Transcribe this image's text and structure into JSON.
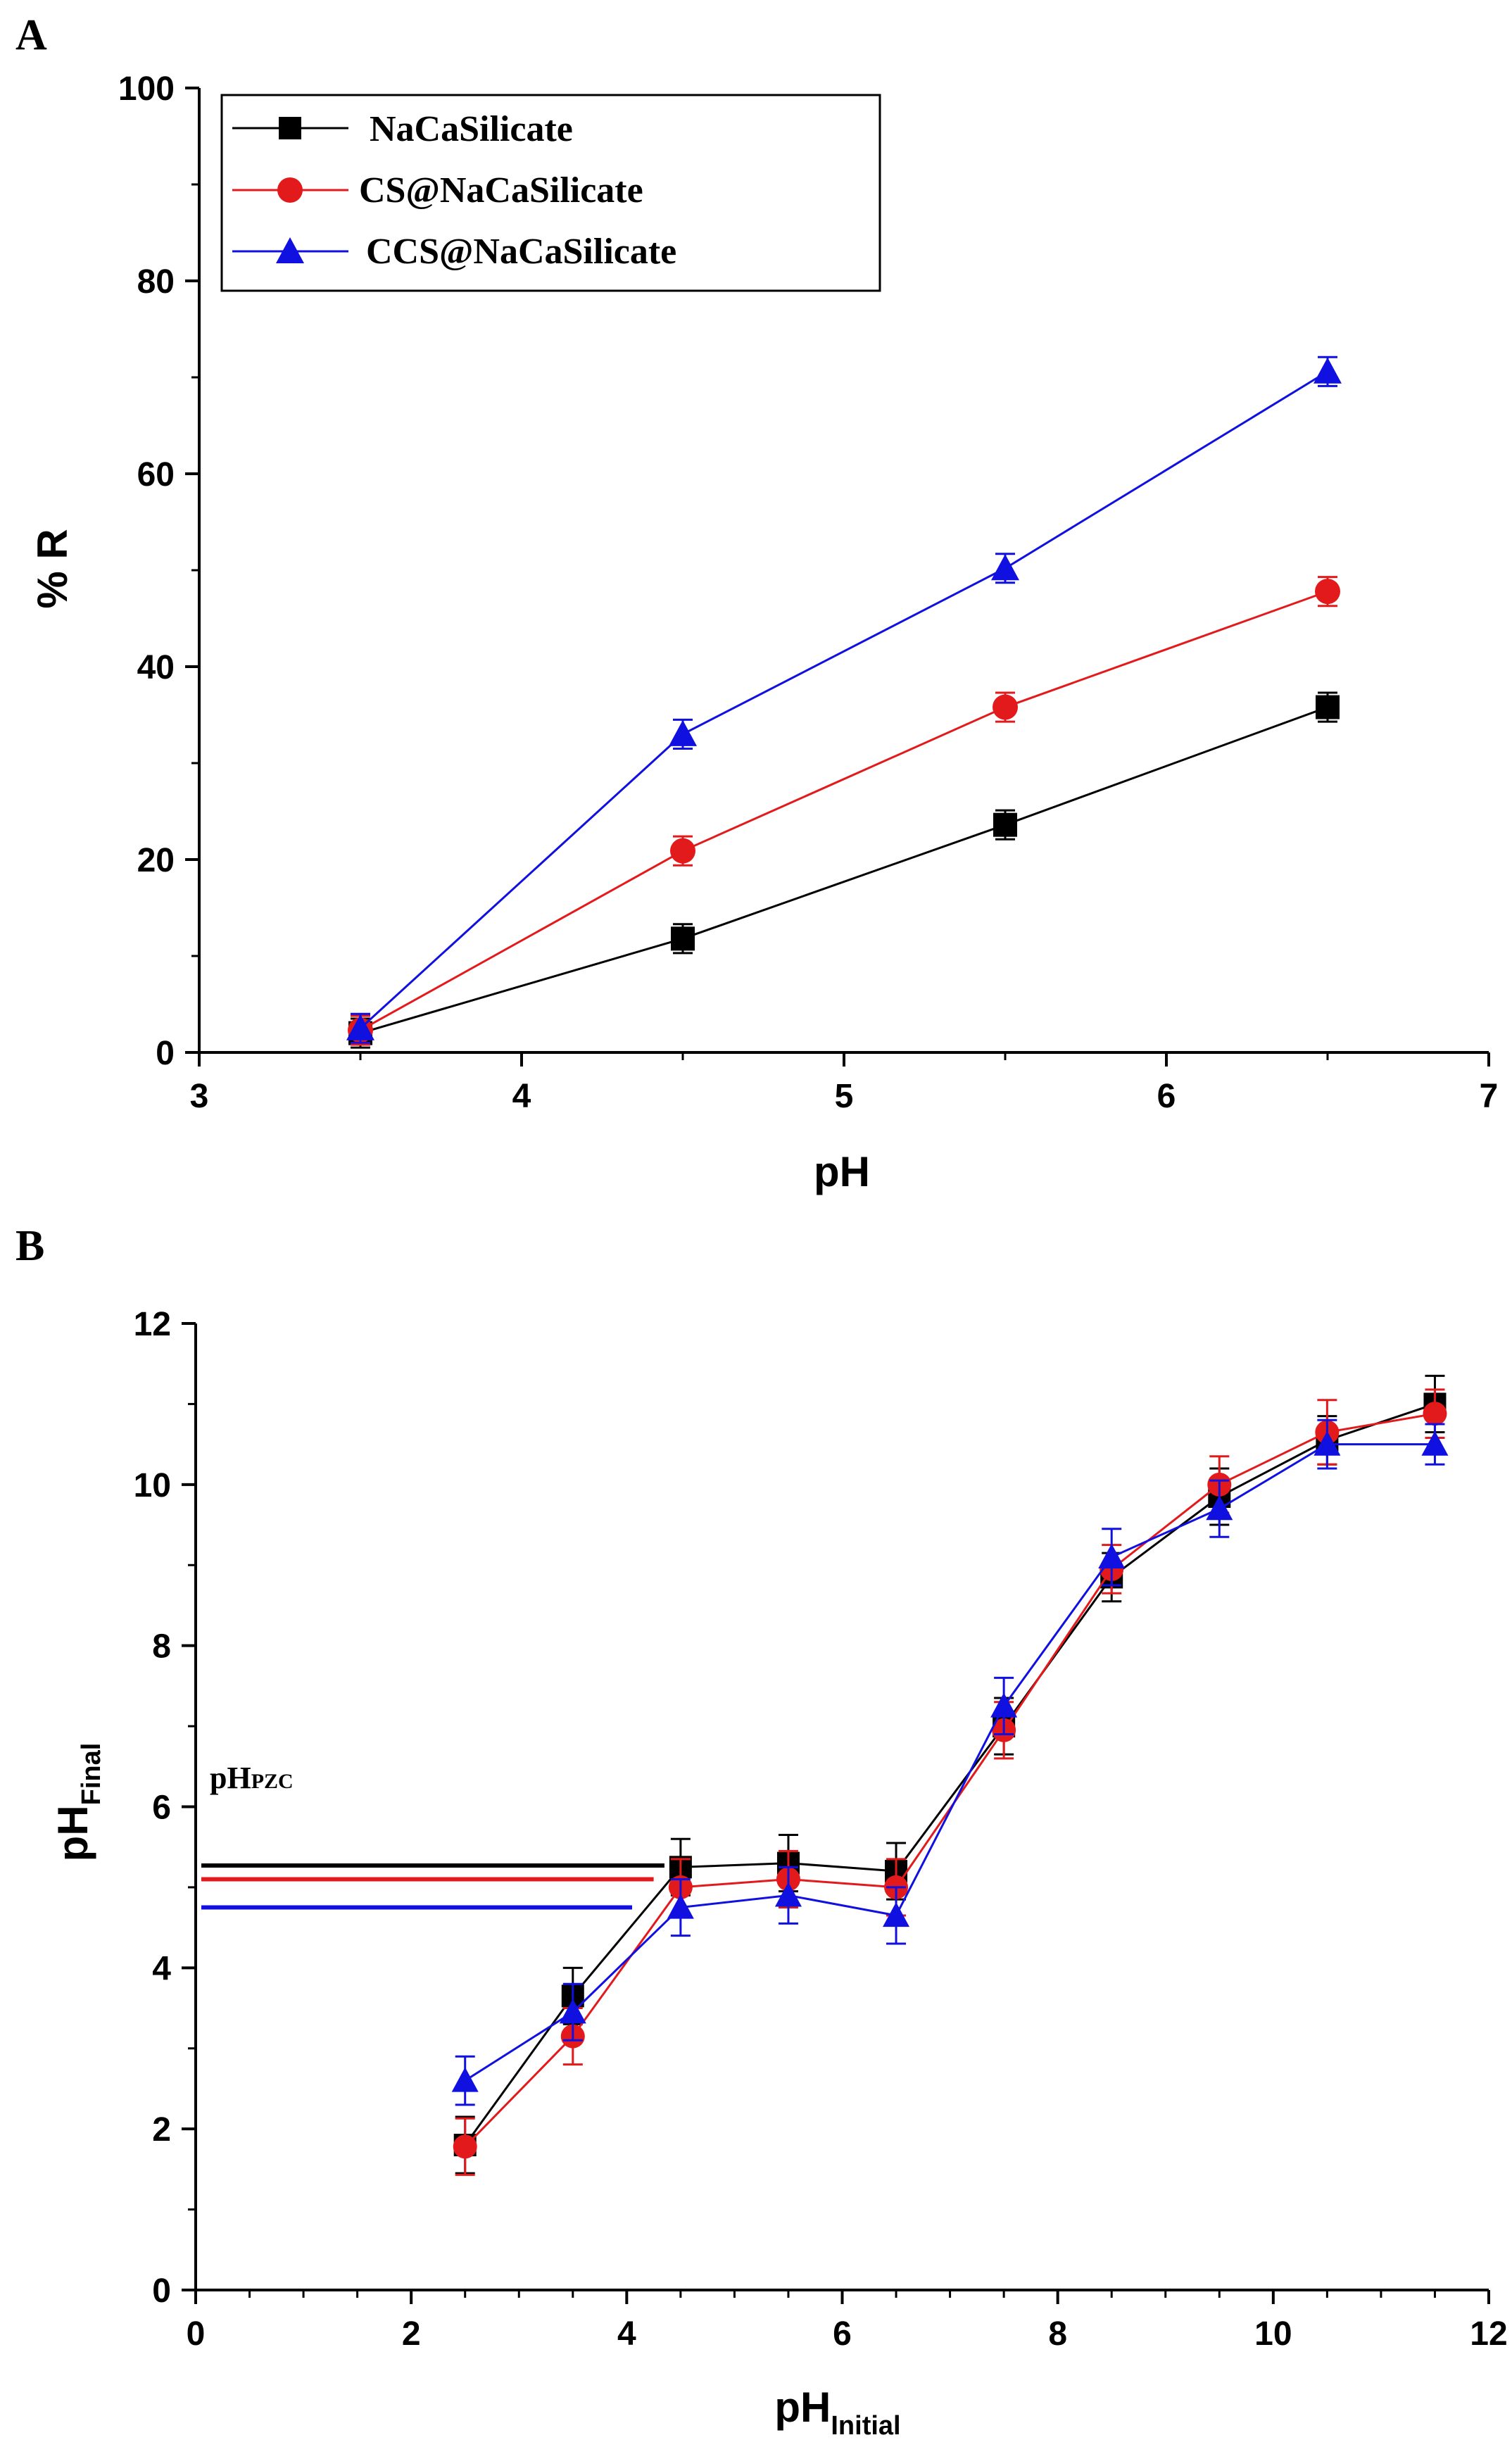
{
  "figure": {
    "panels": [
      "A",
      "B"
    ]
  },
  "colors": {
    "NaCaSilicate": "#000000",
    "CS@NaCaSilicate": "#e31a1c",
    "CCS@NaCaSilicate": "#1010e0",
    "axis": "#000000"
  },
  "chart_data": [
    {
      "panel": "A",
      "type": "line",
      "title": "",
      "xlabel": "pH",
      "ylabel": "% R",
      "xlim": [
        3,
        7
      ],
      "ylim": [
        0,
        100
      ],
      "xticks": [
        "3",
        "4",
        "5",
        "6",
        "7"
      ],
      "yticks": [
        "0",
        "20",
        "40",
        "60",
        "80",
        "100"
      ],
      "legend_position": "top-left",
      "x": [
        3.5,
        4.5,
        5.5,
        6.5
      ],
      "series": [
        {
          "name": "NaCaSilicate",
          "marker": "square",
          "values": [
            2.0,
            11.8,
            23.6,
            35.8
          ],
          "errors": [
            1.5,
            1.5,
            1.5,
            1.5
          ]
        },
        {
          "name": "CS@NaCaSilicate",
          "marker": "circle",
          "values": [
            2.3,
            20.9,
            35.8,
            47.8
          ],
          "errors": [
            1.5,
            1.5,
            1.5,
            1.5
          ]
        },
        {
          "name": "CCS@NaCaSilicate",
          "marker": "triangle",
          "values": [
            2.5,
            33.0,
            50.2,
            70.6
          ],
          "errors": [
            1.5,
            1.5,
            1.5,
            1.5
          ]
        }
      ]
    },
    {
      "panel": "B",
      "type": "line",
      "title": "",
      "xlabel": "pH",
      "xlabel_sub": "Initial",
      "ylabel": "pH",
      "ylabel_sub": "Final",
      "xlim": [
        0,
        12
      ],
      "ylim": [
        0,
        12
      ],
      "xticks": [
        "0",
        "2",
        "4",
        "6",
        "8",
        "10",
        "12"
      ],
      "yticks": [
        "0",
        "2",
        "4",
        "6",
        "8",
        "10",
        "12"
      ],
      "annotation": {
        "main": "pH",
        "sub": "PZC"
      },
      "pzc_lines": [
        {
          "name": "NaCaSilicate",
          "value": 5.27,
          "x_end": 4.35
        },
        {
          "name": "CS@NaCaSilicate",
          "value": 5.1,
          "x_end": 4.25
        },
        {
          "name": "CCS@NaCaSilicate",
          "value": 4.75,
          "x_end": 4.05
        }
      ],
      "x": [
        2.5,
        3.5,
        4.5,
        5.5,
        6.5,
        7.5,
        8.5,
        9.5,
        10.5,
        11.5
      ],
      "series": [
        {
          "name": "NaCaSilicate",
          "marker": "square",
          "values": [
            1.8,
            3.65,
            5.25,
            5.3,
            5.2,
            7.0,
            8.85,
            9.85,
            10.55,
            11.0
          ],
          "errors": [
            0.35,
            0.35,
            0.35,
            0.35,
            0.35,
            0.35,
            0.3,
            0.35,
            0.3,
            0.35
          ]
        },
        {
          "name": "CS@NaCaSilicate",
          "marker": "circle",
          "values": [
            1.78,
            3.15,
            5.0,
            5.1,
            5.0,
            6.95,
            8.95,
            10.0,
            10.65,
            10.88
          ],
          "errors": [
            0.35,
            0.35,
            0.35,
            0.35,
            0.35,
            0.35,
            0.3,
            0.35,
            0.4,
            0.3
          ]
        },
        {
          "name": "CCS@NaCaSilicate",
          "marker": "triangle",
          "values": [
            2.6,
            3.45,
            4.75,
            4.9,
            4.65,
            7.25,
            9.1,
            9.7,
            10.5,
            10.5
          ],
          "errors": [
            0.3,
            0.35,
            0.35,
            0.35,
            0.35,
            0.35,
            0.35,
            0.35,
            0.3,
            0.25
          ]
        }
      ]
    }
  ]
}
